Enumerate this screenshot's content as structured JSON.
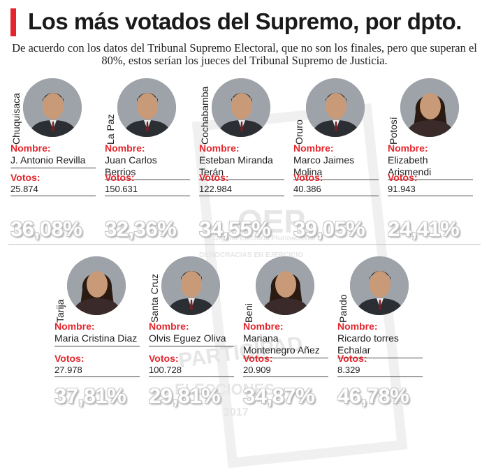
{
  "header": {
    "title": "Los más votados del Supremo, por dpto.",
    "subtitle": "De acuerdo con los datos del Tribunal Supremo Electoral, que no son los finales, pero que superan el 80%, estos serían los jueces del Tribunal Supremo de Justicia."
  },
  "labels": {
    "name": "Nombre:",
    "votes": "Votos:"
  },
  "watermark": {
    "logo": "OEP",
    "line1": "Órgano Electoral Plurinacional",
    "line2": "DEMOCRACIAS EN EJERCICIO",
    "line3": "PARTICIPAD",
    "line4": "ELECCIONES",
    "line5": "2017"
  },
  "colors": {
    "accent": "#e3262d",
    "text": "#1e1e1e"
  },
  "candidates": [
    {
      "dept": "Chuquisaca",
      "name": "J. Antonio Revilla",
      "votes": "25.874",
      "pct": "36,08%",
      "icon": "male-portrait-icon"
    },
    {
      "dept": "La Paz",
      "name": "Juan Carlos Berrios",
      "votes": "150.631",
      "pct": "32,36%",
      "icon": "male-portrait-icon"
    },
    {
      "dept": "Cochabamba",
      "name": "Esteban Miranda Terán",
      "votes": "122.984",
      "pct": "34,55%",
      "icon": "male-portrait-icon"
    },
    {
      "dept": "Oruro",
      "name": "Marco Jaimes Molina",
      "votes": "40.386",
      "pct": "39,05%",
      "icon": "male-portrait-icon"
    },
    {
      "dept": "Potosí",
      "name": "Elizabeth Arismendi",
      "votes": "91.943",
      "pct": "24,41%",
      "icon": "female-portrait-icon"
    },
    {
      "dept": "Tarija",
      "name": "Maria Cristina Diaz",
      "votes": "27.978",
      "pct": "37,81%",
      "icon": "female-portrait-icon"
    },
    {
      "dept": "Santa Cruz",
      "name": "Olvis Eguez Oliva",
      "votes": "100.728",
      "pct": "29,81%",
      "icon": "male-portrait-icon"
    },
    {
      "dept": "Beni",
      "name": "Mariana Montenegro Añez",
      "votes": "20.909",
      "pct": "34,87%",
      "icon": "female-portrait-icon"
    },
    {
      "dept": "Pando",
      "name": "Ricardo torres Echalar",
      "votes": "8.329",
      "pct": "46,78%",
      "icon": "male-portrait-icon"
    }
  ]
}
